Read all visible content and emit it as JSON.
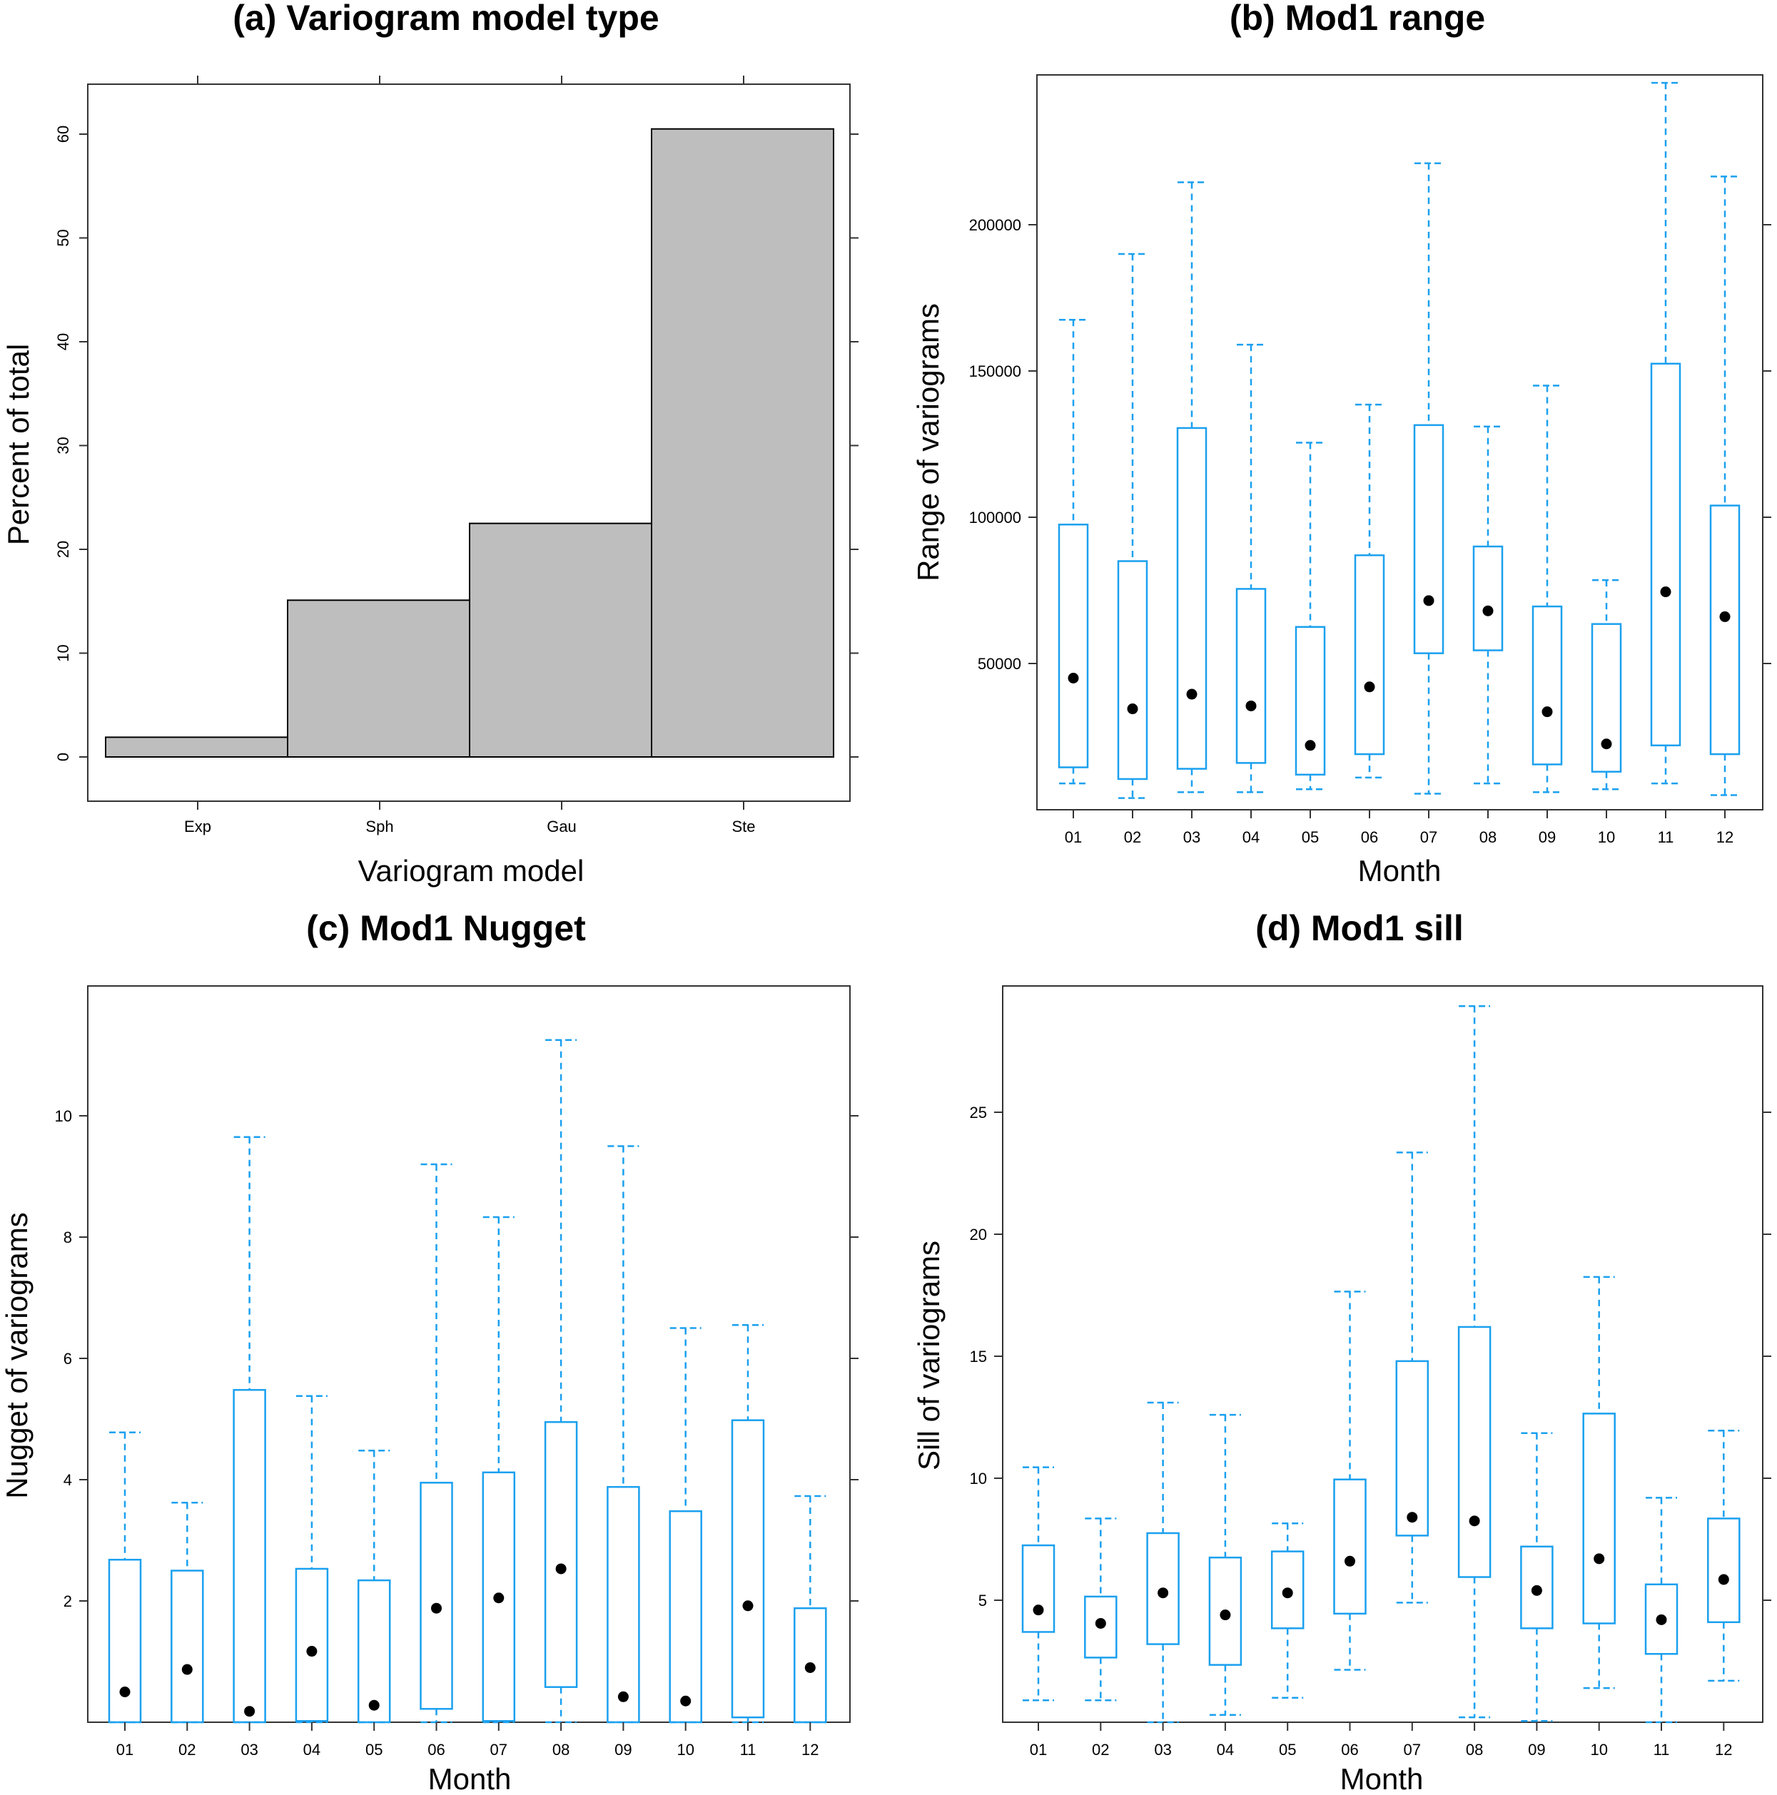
{
  "chart_data": [
    {
      "id": "a",
      "type": "bar",
      "title": "(a) Variogram model type",
      "xlabel": "Variogram model",
      "ylabel": "Percent of total",
      "categories": [
        "Exp",
        "Sph",
        "Gau",
        "Ste"
      ],
      "values": [
        1.9,
        15.1,
        22.5,
        60.5
      ],
      "ylim": [
        -4.3,
        64.9
      ],
      "yticks": [
        0,
        10,
        20,
        30,
        40,
        50,
        60
      ],
      "ytick_labels": [
        "0",
        "10",
        "20",
        "30",
        "40",
        "50",
        "60"
      ]
    },
    {
      "id": "b",
      "type": "box",
      "title": "(b) Mod1 range",
      "xlabel": "Month",
      "ylabel": "Range of variograms",
      "categories": [
        "01",
        "02",
        "03",
        "04",
        "05",
        "06",
        "07",
        "08",
        "09",
        "10",
        "11",
        "12"
      ],
      "ylim": [
        0,
        250000
      ],
      "yticks": [
        50000,
        100000,
        150000,
        200000
      ],
      "ytick_labels": [
        "50000",
        "100000",
        "150000",
        "200000"
      ],
      "boxes": [
        {
          "lo": 9000,
          "q1": 14500,
          "med": 45000,
          "q3": 97500,
          "hi": 167500
        },
        {
          "lo": 4000,
          "q1": 10500,
          "med": 34500,
          "q3": 85000,
          "hi": 190000
        },
        {
          "lo": 6000,
          "q1": 14000,
          "med": 39500,
          "q3": 130500,
          "hi": 214500
        },
        {
          "lo": 6000,
          "q1": 16000,
          "med": 35500,
          "q3": 75500,
          "hi": 159000
        },
        {
          "lo": 7000,
          "q1": 12000,
          "med": 22000,
          "q3": 62500,
          "hi": 125500
        },
        {
          "lo": 11000,
          "q1": 19000,
          "med": 42000,
          "q3": 87000,
          "hi": 138500
        },
        {
          "lo": 5500,
          "q1": 53500,
          "med": 71500,
          "q3": 131500,
          "hi": 221000
        },
        {
          "lo": 9000,
          "q1": 54500,
          "med": 68000,
          "q3": 90000,
          "hi": 131000
        },
        {
          "lo": 6000,
          "q1": 15500,
          "med": 33500,
          "q3": 69500,
          "hi": 145000
        },
        {
          "lo": 7000,
          "q1": 13000,
          "med": 22500,
          "q3": 63500,
          "hi": 78500
        },
        {
          "lo": 9000,
          "q1": 22000,
          "med": 74500,
          "q3": 152500,
          "hi": 248500
        },
        {
          "lo": 5000,
          "q1": 19000,
          "med": 66000,
          "q3": 104000,
          "hi": 216500
        }
      ]
    },
    {
      "id": "c",
      "type": "box",
      "title": "(c) Mod1 Nugget",
      "xlabel": "Month",
      "ylabel": "Nugget of variograms",
      "categories": [
        "01",
        "02",
        "03",
        "04",
        "05",
        "06",
        "07",
        "08",
        "09",
        "10",
        "11",
        "12"
      ],
      "ylim": [
        0,
        12
      ],
      "yticks": [
        2,
        4,
        6,
        8,
        10
      ],
      "ytick_labels": [
        "2",
        "4",
        "6",
        "8",
        "10"
      ],
      "boxes": [
        {
          "lo": 0,
          "q1": 0,
          "med": 0.5,
          "q3": 2.68,
          "hi": 4.78
        },
        {
          "lo": 0,
          "q1": 0,
          "med": 0.87,
          "q3": 2.5,
          "hi": 3.62
        },
        {
          "lo": 0,
          "q1": 0,
          "med": 0.18,
          "q3": 5.48,
          "hi": 9.65
        },
        {
          "lo": 0,
          "q1": 0.02,
          "med": 1.17,
          "q3": 2.53,
          "hi": 5.38
        },
        {
          "lo": 0,
          "q1": 0,
          "med": 0.28,
          "q3": 2.34,
          "hi": 4.48
        },
        {
          "lo": 0,
          "q1": 0.22,
          "med": 1.88,
          "q3": 3.95,
          "hi": 9.2
        },
        {
          "lo": 0,
          "q1": 0.02,
          "med": 2.05,
          "q3": 4.12,
          "hi": 8.33
        },
        {
          "lo": 0,
          "q1": 0.58,
          "med": 2.53,
          "q3": 4.95,
          "hi": 11.25
        },
        {
          "lo": 0,
          "q1": 0,
          "med": 0.42,
          "q3": 3.88,
          "hi": 9.5
        },
        {
          "lo": 0,
          "q1": 0,
          "med": 0.35,
          "q3": 3.48,
          "hi": 6.5
        },
        {
          "lo": 0,
          "q1": 0.08,
          "med": 1.92,
          "q3": 4.98,
          "hi": 6.55
        },
        {
          "lo": 0,
          "q1": 0,
          "med": 0.9,
          "q3": 1.88,
          "hi": 3.73
        }
      ]
    },
    {
      "id": "d",
      "type": "box",
      "title": "(d) Mod1 sill",
      "xlabel": "Month",
      "ylabel": "Sill of variograms",
      "categories": [
        "01",
        "02",
        "03",
        "04",
        "05",
        "06",
        "07",
        "08",
        "09",
        "10",
        "11",
        "12"
      ],
      "ylim": [
        0,
        30
      ],
      "yticks": [
        5,
        10,
        15,
        20,
        25
      ],
      "ytick_labels": [
        "5",
        "10",
        "15",
        "20",
        "25"
      ],
      "boxes": [
        {
          "lo": 0.9,
          "q1": 3.7,
          "med": 4.6,
          "q3": 7.25,
          "hi": 10.45
        },
        {
          "lo": 0.9,
          "q1": 2.65,
          "med": 4.05,
          "q3": 5.15,
          "hi": 8.35
        },
        {
          "lo": 0,
          "q1": 3.2,
          "med": 5.3,
          "q3": 7.75,
          "hi": 13.1
        },
        {
          "lo": 0.3,
          "q1": 2.35,
          "med": 4.4,
          "q3": 6.75,
          "hi": 12.6
        },
        {
          "lo": 1.0,
          "q1": 3.85,
          "med": 5.3,
          "q3": 7.0,
          "hi": 8.15
        },
        {
          "lo": 2.15,
          "q1": 4.45,
          "med": 6.6,
          "q3": 9.95,
          "hi": 17.65
        },
        {
          "lo": 4.9,
          "q1": 7.65,
          "med": 8.4,
          "q3": 14.8,
          "hi": 23.35
        },
        {
          "lo": 0.2,
          "q1": 5.95,
          "med": 8.25,
          "q3": 16.2,
          "hi": 29.35
        },
        {
          "lo": 0.05,
          "q1": 3.85,
          "med": 5.4,
          "q3": 7.2,
          "hi": 11.85
        },
        {
          "lo": 1.4,
          "q1": 4.05,
          "med": 6.7,
          "q3": 12.65,
          "hi": 18.25
        },
        {
          "lo": 0,
          "q1": 2.8,
          "med": 4.2,
          "q3": 5.65,
          "hi": 9.2
        },
        {
          "lo": 1.7,
          "q1": 4.1,
          "med": 5.85,
          "q3": 8.35,
          "hi": 11.95
        }
      ]
    }
  ]
}
